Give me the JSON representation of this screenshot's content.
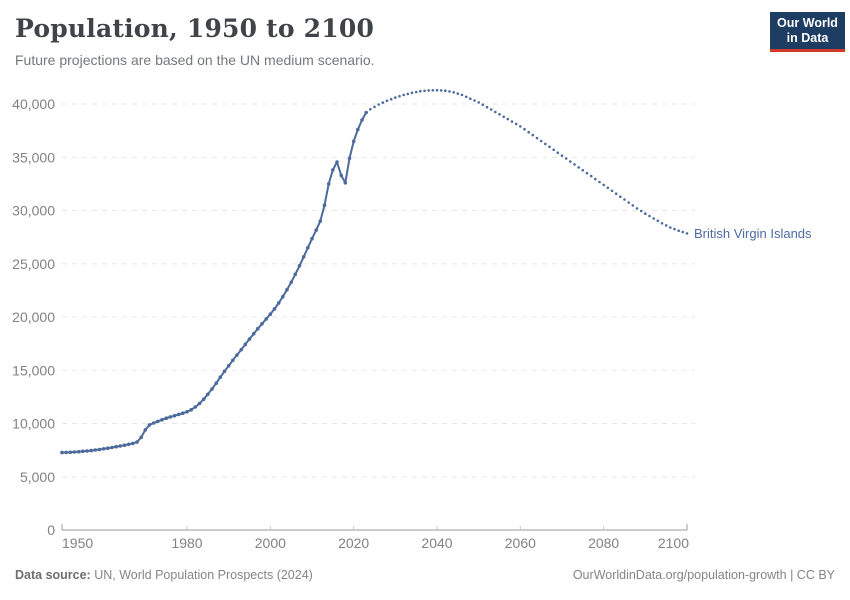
{
  "header": {
    "title": "Population, 1950 to 2100",
    "subtitle": "Future projections are based on the UN medium scenario.",
    "logo": {
      "line1": "Our World",
      "line2": "in Data"
    }
  },
  "footer": {
    "source_label": "Data source:",
    "source_text": " UN, World Population Prospects (2024)",
    "credit": "OurWorldinData.org/population-growth | CC BY"
  },
  "colors": {
    "line": "#4c6a9c",
    "entity_label": "#4d6ba3",
    "grid": "#e7e7e7",
    "axis": "#999999",
    "tick_label": "#828282",
    "logo_bg": "#1d3d63",
    "logo_accent": "#d5382d"
  },
  "chart_data": {
    "type": "line",
    "title": "Population, 1950 to 2100",
    "subtitle": "Future projections are based on the UN medium scenario.",
    "entity_label": "British Virgin Islands",
    "xlabel": "",
    "ylabel": "",
    "xlim": [
      1950,
      2100
    ],
    "ylim": [
      0,
      40000
    ],
    "x_ticks": [
      1950,
      1980,
      2000,
      2020,
      2040,
      2060,
      2080,
      2100
    ],
    "y_ticks": [
      0,
      5000,
      10000,
      15000,
      20000,
      25000,
      30000,
      35000,
      40000
    ],
    "grid": "horizontal-dashed",
    "legend_position": "end-of-line-label",
    "series": [
      {
        "name": "British Virgin Islands (estimates)",
        "style": "solid-with-markers",
        "points": [
          [
            1950,
            7270
          ],
          [
            1951,
            7285
          ],
          [
            1952,
            7300
          ],
          [
            1953,
            7320
          ],
          [
            1954,
            7350
          ],
          [
            1955,
            7385
          ],
          [
            1956,
            7420
          ],
          [
            1957,
            7460
          ],
          [
            1958,
            7510
          ],
          [
            1959,
            7560
          ],
          [
            1960,
            7620
          ],
          [
            1961,
            7685
          ],
          [
            1962,
            7750
          ],
          [
            1963,
            7820
          ],
          [
            1964,
            7890
          ],
          [
            1965,
            7965
          ],
          [
            1966,
            8045
          ],
          [
            1967,
            8130
          ],
          [
            1968,
            8250
          ],
          [
            1969,
            8700
          ],
          [
            1970,
            9400
          ],
          [
            1971,
            9870
          ],
          [
            1972,
            10050
          ],
          [
            1973,
            10200
          ],
          [
            1974,
            10350
          ],
          [
            1975,
            10500
          ],
          [
            1976,
            10620
          ],
          [
            1977,
            10730
          ],
          [
            1978,
            10850
          ],
          [
            1979,
            10970
          ],
          [
            1980,
            11100
          ],
          [
            1981,
            11290
          ],
          [
            1982,
            11550
          ],
          [
            1983,
            11880
          ],
          [
            1984,
            12280
          ],
          [
            1985,
            12740
          ],
          [
            1986,
            13240
          ],
          [
            1987,
            13780
          ],
          [
            1988,
            14350
          ],
          [
            1989,
            14900
          ],
          [
            1990,
            15420
          ],
          [
            1991,
            15930
          ],
          [
            1992,
            16430
          ],
          [
            1993,
            16930
          ],
          [
            1994,
            17430
          ],
          [
            1995,
            17930
          ],
          [
            1996,
            18420
          ],
          [
            1997,
            18900
          ],
          [
            1998,
            19360
          ],
          [
            1999,
            19810
          ],
          [
            2000,
            20260
          ],
          [
            2001,
            20760
          ],
          [
            2002,
            21310
          ],
          [
            2003,
            21910
          ],
          [
            2004,
            22560
          ],
          [
            2005,
            23260
          ],
          [
            2006,
            24010
          ],
          [
            2007,
            24810
          ],
          [
            2008,
            25650
          ],
          [
            2009,
            26500
          ],
          [
            2010,
            27350
          ],
          [
            2011,
            28160
          ],
          [
            2012,
            29000
          ],
          [
            2013,
            30500
          ],
          [
            2014,
            32500
          ],
          [
            2015,
            33800
          ],
          [
            2016,
            34550
          ],
          [
            2017,
            33300
          ],
          [
            2018,
            32600
          ],
          [
            2019,
            34900
          ],
          [
            2020,
            36500
          ],
          [
            2021,
            37600
          ],
          [
            2022,
            38500
          ],
          [
            2023,
            39200
          ]
        ]
      },
      {
        "name": "British Virgin Islands (UN medium projection)",
        "style": "dotted",
        "points": [
          [
            2024,
            39500
          ],
          [
            2025,
            39730
          ],
          [
            2026,
            39950
          ],
          [
            2027,
            40130
          ],
          [
            2028,
            40300
          ],
          [
            2029,
            40450
          ],
          [
            2030,
            40600
          ],
          [
            2031,
            40730
          ],
          [
            2032,
            40850
          ],
          [
            2033,
            40950
          ],
          [
            2034,
            41050
          ],
          [
            2035,
            41130
          ],
          [
            2036,
            41200
          ],
          [
            2037,
            41240
          ],
          [
            2038,
            41280
          ],
          [
            2039,
            41290
          ],
          [
            2040,
            41300
          ],
          [
            2041,
            41280
          ],
          [
            2042,
            41250
          ],
          [
            2043,
            41180
          ],
          [
            2044,
            41100
          ],
          [
            2045,
            40980
          ],
          [
            2046,
            40850
          ],
          [
            2047,
            40680
          ],
          [
            2048,
            40500
          ],
          [
            2049,
            40330
          ],
          [
            2050,
            40150
          ],
          [
            2051,
            39930
          ],
          [
            2052,
            39700
          ],
          [
            2053,
            39480
          ],
          [
            2054,
            39250
          ],
          [
            2055,
            39030
          ],
          [
            2056,
            38800
          ],
          [
            2057,
            38580
          ],
          [
            2058,
            38350
          ],
          [
            2059,
            38130
          ],
          [
            2060,
            37900
          ],
          [
            2061,
            37630
          ],
          [
            2062,
            37350
          ],
          [
            2063,
            37080
          ],
          [
            2064,
            36800
          ],
          [
            2065,
            36530
          ],
          [
            2066,
            36250
          ],
          [
            2067,
            35980
          ],
          [
            2068,
            35700
          ],
          [
            2069,
            35430
          ],
          [
            2070,
            35150
          ],
          [
            2071,
            34880
          ],
          [
            2072,
            34600
          ],
          [
            2073,
            34330
          ],
          [
            2074,
            34050
          ],
          [
            2075,
            33780
          ],
          [
            2076,
            33500
          ],
          [
            2077,
            33230
          ],
          [
            2078,
            32950
          ],
          [
            2079,
            32680
          ],
          [
            2080,
            32400
          ],
          [
            2081,
            32130
          ],
          [
            2082,
            31850
          ],
          [
            2083,
            31580
          ],
          [
            2084,
            31300
          ],
          [
            2085,
            31030
          ],
          [
            2086,
            30750
          ],
          [
            2087,
            30480
          ],
          [
            2088,
            30200
          ],
          [
            2089,
            29950
          ],
          [
            2090,
            29700
          ],
          [
            2091,
            29480
          ],
          [
            2092,
            29250
          ],
          [
            2093,
            29030
          ],
          [
            2094,
            28800
          ],
          [
            2095,
            28600
          ],
          [
            2096,
            28400
          ],
          [
            2097,
            28250
          ],
          [
            2098,
            28100
          ],
          [
            2099,
            27980
          ],
          [
            2100,
            27850
          ]
        ]
      }
    ]
  }
}
